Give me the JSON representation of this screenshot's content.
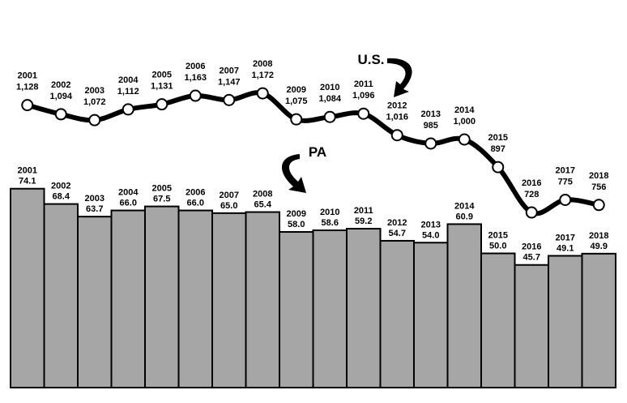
{
  "chart_data": [
    {
      "type": "line",
      "label": "U.S.",
      "color": "#000000",
      "categories": [
        "2001",
        "2002",
        "2003",
        "2004",
        "2005",
        "2006",
        "2007",
        "2008",
        "2009",
        "2010",
        "2011",
        "2012",
        "2013",
        "2014",
        "2015",
        "2016",
        "2017",
        "2018"
      ],
      "values": [
        1128,
        1094,
        1072,
        1112,
        1131,
        1163,
        1147,
        1172,
        1075,
        1084,
        1096,
        1016,
        985,
        1000,
        897,
        728,
        775,
        756
      ],
      "value_labels": [
        "1,128",
        "1,094",
        "1,072",
        "1,112",
        "1,131",
        "1,163",
        "1,147",
        "1,172",
        "1,075",
        "1,084",
        "1,096",
        "1,016",
        "985",
        "1,000",
        "897",
        "728",
        "775",
        "756"
      ]
    },
    {
      "type": "bar",
      "label": "PA",
      "color": "#a6a6a6",
      "categories": [
        "2001",
        "2002",
        "2003",
        "2004",
        "2005",
        "2006",
        "2007",
        "2008",
        "2009",
        "2010",
        "2011",
        "2012",
        "2013",
        "2014",
        "2015",
        "2016",
        "2017",
        "2018"
      ],
      "values": [
        74.1,
        68.4,
        63.7,
        66.0,
        67.5,
        66.0,
        65.0,
        65.4,
        58.0,
        58.6,
        59.2,
        54.7,
        54.0,
        60.9,
        50.0,
        45.7,
        49.1,
        49.9
      ],
      "value_labels": [
        "74.1",
        "68.4",
        "63.7",
        "66.0",
        "67.5",
        "66.0",
        "65.0",
        "65.4",
        "58.0",
        "58.6",
        "59.2",
        "54.7",
        "54.0",
        "60.9",
        "50.0",
        "45.7",
        "49.1",
        "49.9"
      ]
    }
  ]
}
